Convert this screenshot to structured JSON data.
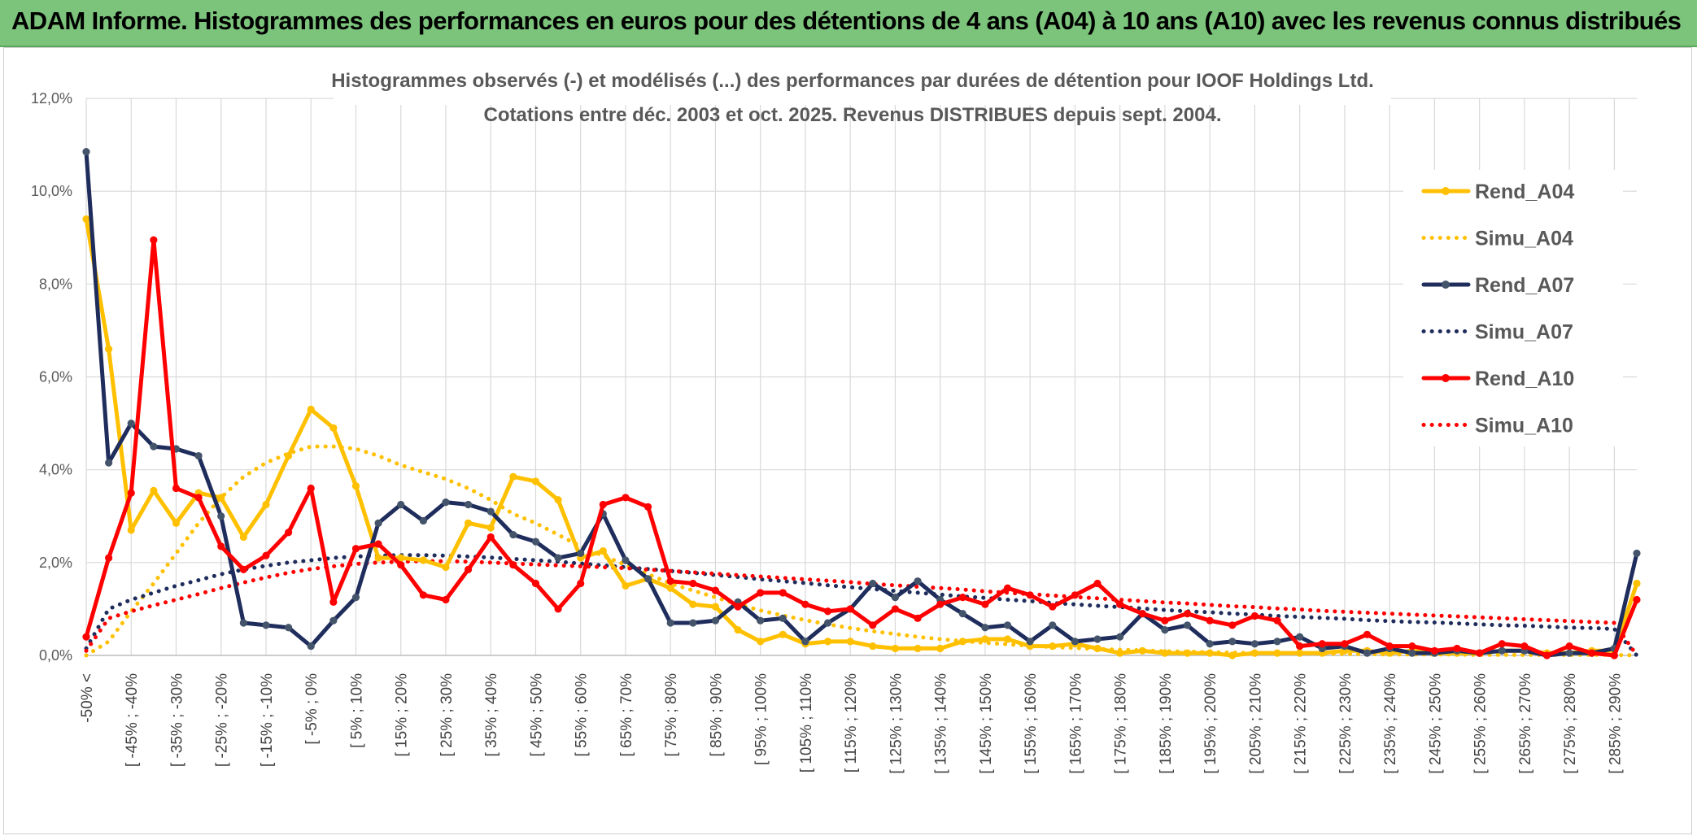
{
  "header": {
    "title": "ADAM Informe. Histogrammes des performances en euros pour des détentions de 4 ans (A04) à 10 ans (A10) avec les revenus connus distribués"
  },
  "chart_data": {
    "type": "line",
    "title_line1": "Histogrammes observés (-) et modélisés (...) des performances par durées de détention pour IOOF Holdings Ltd.",
    "title_line2": "Cotations entre déc. 2003 et oct. 2025. Revenus DISTRIBUES depuis sept. 2004.",
    "ylim": [
      0,
      12
    ],
    "yticks": [
      "0,0%",
      "2,0%",
      "4,0%",
      "6,0%",
      "8,0%",
      "10,0%",
      "12,0%"
    ],
    "grid": true,
    "legend_position": "right",
    "n_points": 70,
    "x_tick_labels": [
      "-50% <",
      "[ -45% ; -40%",
      "[ -35% ; -30%",
      "[ -25% ; -20%",
      "[ -15% ; -10%",
      "[ -5% ; 0%",
      "[ 5% ; 10%",
      "[ 15% ; 20%",
      "[ 25% ; 30%",
      "[ 35% ; 40%",
      "[ 45% ; 50%",
      "[ 55% ; 60%",
      "[ 65% ; 70%",
      "[ 75% ; 80%",
      "[ 85% ; 90%",
      "[ 95% ; 100%",
      "[ 105% ; 110%",
      "[ 115% ; 120%",
      "[ 125% ; 130%",
      "[ 135% ; 140%",
      "[ 145% ; 150%",
      "[ 155% ; 160%",
      "[ 165% ; 170%",
      "[ 175% ; 180%",
      "[ 185% ; 190%",
      "[ 195% ; 200%",
      "[ 205% ; 210%",
      "[ 215% ; 220%",
      "[ 225% ; 230%",
      "[ 235% ; 240%",
      "[ 245% ; 250%",
      "[ 255% ; 260%",
      "[ 265% ; 270%",
      "[ 275% ; 280%",
      "[ 285% ; 290%"
    ],
    "x_tick_indices": [
      0,
      2,
      4,
      6,
      8,
      10,
      12,
      14,
      16,
      18,
      20,
      22,
      24,
      26,
      28,
      30,
      32,
      34,
      36,
      38,
      40,
      42,
      44,
      46,
      48,
      50,
      52,
      54,
      56,
      58,
      60,
      62,
      64,
      66,
      68
    ],
    "series": [
      {
        "name": "Rend_A04",
        "color": "#FFC000",
        "style": "solid",
        "markers": true,
        "values": [
          9.4,
          6.6,
          2.7,
          3.55,
          2.85,
          3.5,
          3.4,
          2.55,
          3.25,
          4.3,
          5.3,
          4.9,
          3.65,
          2.1,
          2.1,
          2.05,
          1.9,
          2.85,
          2.75,
          3.85,
          3.75,
          3.35,
          2.1,
          2.25,
          1.5,
          1.65,
          1.45,
          1.1,
          1.05,
          0.55,
          0.3,
          0.45,
          0.25,
          0.3,
          0.3,
          0.2,
          0.15,
          0.15,
          0.15,
          0.3,
          0.35,
          0.35,
          0.2,
          0.2,
          0.25,
          0.15,
          0.05,
          0.1,
          0.05,
          0.05,
          0.05,
          0.0,
          0.05,
          0.05,
          0.05,
          0.05,
          0.1,
          0.1,
          0.05,
          0.1,
          0.05,
          0.05,
          0.05,
          0.1,
          0.1,
          0.05,
          0.05,
          0.1,
          0.1,
          1.55
        ]
      },
      {
        "name": "Simu_A04",
        "color": "#FFC000",
        "style": "dotted",
        "markers": false,
        "values": [
          0.0,
          0.3,
          0.95,
          1.55,
          2.2,
          2.85,
          3.4,
          3.85,
          4.15,
          4.35,
          4.5,
          4.5,
          4.45,
          4.3,
          4.1,
          3.95,
          3.8,
          3.6,
          3.35,
          3.05,
          2.85,
          2.6,
          2.35,
          2.15,
          1.95,
          1.75,
          1.55,
          1.4,
          1.25,
          1.1,
          0.97,
          0.86,
          0.76,
          0.67,
          0.59,
          0.52,
          0.46,
          0.4,
          0.35,
          0.31,
          0.27,
          0.24,
          0.21,
          0.18,
          0.16,
          0.14,
          0.12,
          0.11,
          0.09,
          0.08,
          0.07,
          0.06,
          0.05,
          0.05,
          0.04,
          0.04,
          0.03,
          0.03,
          0.02,
          0.02,
          0.02,
          0.02,
          0.01,
          0.01,
          0.01,
          0.01,
          0.01,
          0.01,
          0.01,
          0.0
        ]
      },
      {
        "name": "Rend_A07",
        "color": "#1F2D5C",
        "style": "solid",
        "markers": true,
        "values": [
          10.85,
          4.15,
          5.0,
          4.5,
          4.45,
          4.3,
          3.0,
          0.7,
          0.65,
          0.6,
          0.2,
          0.75,
          1.25,
          2.85,
          3.25,
          2.9,
          3.3,
          3.25,
          3.1,
          2.6,
          2.45,
          2.1,
          2.2,
          3.05,
          2.05,
          1.65,
          0.7,
          0.7,
          0.75,
          1.15,
          0.75,
          0.8,
          0.3,
          0.7,
          1.0,
          1.55,
          1.25,
          1.6,
          1.2,
          0.9,
          0.6,
          0.65,
          0.3,
          0.65,
          0.3,
          0.35,
          0.4,
          0.9,
          0.55,
          0.65,
          0.25,
          0.3,
          0.25,
          0.3,
          0.4,
          0.15,
          0.2,
          0.05,
          0.15,
          0.05,
          0.05,
          0.1,
          0.05,
          0.1,
          0.1,
          0.0,
          0.05,
          0.05,
          0.15,
          2.2
        ]
      },
      {
        "name": "Simu_A07",
        "color": "#1F2D5C",
        "style": "dotted",
        "markers": false,
        "values": [
          0.15,
          1.0,
          1.2,
          1.35,
          1.5,
          1.62,
          1.75,
          1.85,
          1.93,
          2.0,
          2.05,
          2.1,
          2.13,
          2.15,
          2.16,
          2.16,
          2.15,
          2.13,
          2.11,
          2.08,
          2.05,
          2.02,
          1.98,
          1.94,
          1.9,
          1.86,
          1.82,
          1.78,
          1.73,
          1.69,
          1.64,
          1.6,
          1.56,
          1.51,
          1.47,
          1.43,
          1.39,
          1.35,
          1.31,
          1.27,
          1.24,
          1.2,
          1.17,
          1.13,
          1.1,
          1.07,
          1.04,
          1.01,
          0.98,
          0.95,
          0.93,
          0.9,
          0.88,
          0.85,
          0.83,
          0.81,
          0.79,
          0.76,
          0.74,
          0.72,
          0.71,
          0.69,
          0.67,
          0.65,
          0.64,
          0.62,
          0.6,
          0.59,
          0.57,
          0.0
        ]
      },
      {
        "name": "Rend_A10",
        "color": "#FF0000",
        "style": "solid",
        "markers": true,
        "values": [
          0.4,
          2.1,
          3.5,
          8.95,
          3.6,
          3.4,
          2.35,
          1.85,
          2.15,
          2.65,
          3.6,
          1.15,
          2.3,
          2.4,
          1.95,
          1.3,
          1.2,
          1.85,
          2.55,
          1.95,
          1.55,
          1.0,
          1.55,
          3.25,
          3.4,
          3.2,
          1.6,
          1.55,
          1.4,
          1.05,
          1.35,
          1.35,
          1.1,
          0.95,
          1.0,
          0.65,
          1.0,
          0.8,
          1.1,
          1.25,
          1.1,
          1.45,
          1.3,
          1.05,
          1.3,
          1.55,
          1.1,
          0.9,
          0.75,
          0.9,
          0.75,
          0.65,
          0.85,
          0.75,
          0.2,
          0.25,
          0.25,
          0.45,
          0.2,
          0.2,
          0.1,
          0.15,
          0.05,
          0.25,
          0.2,
          0.0,
          0.2,
          0.05,
          0.0,
          1.2
        ]
      },
      {
        "name": "Simu_A10",
        "color": "#FF0000",
        "style": "dotted",
        "markers": false,
        "values": [
          0.1,
          0.8,
          0.95,
          1.08,
          1.2,
          1.32,
          1.45,
          1.57,
          1.68,
          1.78,
          1.86,
          1.92,
          1.97,
          2.0,
          2.02,
          2.03,
          2.03,
          2.02,
          2.0,
          1.98,
          1.96,
          1.94,
          1.92,
          1.9,
          1.88,
          1.85,
          1.82,
          1.79,
          1.76,
          1.73,
          1.7,
          1.67,
          1.64,
          1.61,
          1.58,
          1.54,
          1.51,
          1.48,
          1.45,
          1.42,
          1.38,
          1.35,
          1.32,
          1.29,
          1.26,
          1.23,
          1.2,
          1.17,
          1.14,
          1.12,
          1.09,
          1.06,
          1.04,
          1.01,
          0.99,
          0.96,
          0.94,
          0.92,
          0.9,
          0.88,
          0.86,
          0.84,
          0.82,
          0.8,
          0.78,
          0.76,
          0.74,
          0.72,
          0.7,
          0.0
        ]
      }
    ]
  }
}
